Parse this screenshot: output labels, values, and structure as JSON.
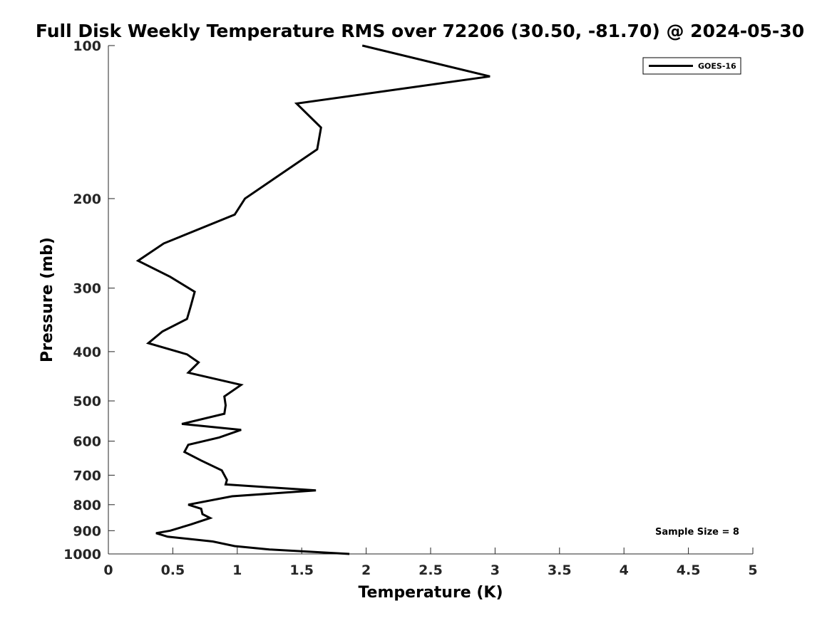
{
  "chart_data": {
    "type": "line",
    "title": "Full Disk Weekly Temperature RMS over 72206 (30.50, -81.70) @ 2024-05-30",
    "xlabel": "Temperature (K)",
    "ylabel": "Pressure (mb)",
    "xlim": [
      0,
      5
    ],
    "ylim": [
      1000,
      100
    ],
    "y_scale": "log",
    "x_ticks": [
      "0",
      "0.5",
      "1",
      "1.5",
      "2",
      "2.5",
      "3",
      "3.5",
      "4",
      "4.5",
      "5"
    ],
    "y_ticks": [
      "100",
      "200",
      "300",
      "400",
      "500",
      "600",
      "700",
      "800",
      "900",
      "1000"
    ],
    "grid": false,
    "legend": {
      "placement": "top-right",
      "entries": [
        "GOES-16"
      ]
    },
    "annotation": "Sample Size = 8",
    "series": [
      {
        "name": "GOES-16",
        "color": "#000000",
        "points": [
          [
            1.97,
            100
          ],
          [
            2.96,
            115
          ],
          [
            1.46,
            130
          ],
          [
            1.65,
            145
          ],
          [
            1.62,
            160
          ],
          [
            1.06,
            200
          ],
          [
            0.98,
            215
          ],
          [
            0.43,
            245
          ],
          [
            0.23,
            265
          ],
          [
            0.48,
            285
          ],
          [
            0.67,
            305
          ],
          [
            0.64,
            325
          ],
          [
            0.61,
            345
          ],
          [
            0.42,
            365
          ],
          [
            0.31,
            385
          ],
          [
            0.61,
            405
          ],
          [
            0.7,
            420
          ],
          [
            0.62,
            440
          ],
          [
            1.03,
            465
          ],
          [
            0.9,
            490
          ],
          [
            0.91,
            510
          ],
          [
            0.9,
            530
          ],
          [
            0.57,
            555
          ],
          [
            1.03,
            570
          ],
          [
            0.86,
            590
          ],
          [
            0.62,
            610
          ],
          [
            0.59,
            630
          ],
          [
            0.72,
            655
          ],
          [
            0.88,
            685
          ],
          [
            0.92,
            715
          ],
          [
            0.91,
            730
          ],
          [
            1.61,
            750
          ],
          [
            0.96,
            770
          ],
          [
            0.62,
            800
          ],
          [
            0.72,
            815
          ],
          [
            0.73,
            835
          ],
          [
            0.79,
            850
          ],
          [
            0.64,
            875
          ],
          [
            0.48,
            900
          ],
          [
            0.37,
            910
          ],
          [
            0.46,
            925
          ],
          [
            0.81,
            945
          ],
          [
            0.98,
            965
          ],
          [
            1.25,
            980
          ],
          [
            1.87,
            1000
          ]
        ]
      }
    ]
  }
}
